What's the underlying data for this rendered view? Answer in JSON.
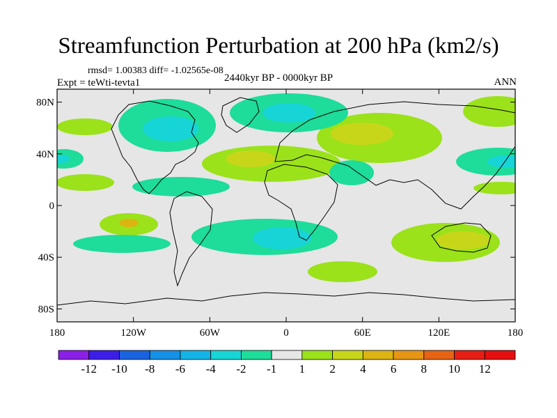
{
  "title": "Streamfunction Perturbation at 200 hPa (km2/s)",
  "stats_line": "rmsd= 1.00383 diff= -1.02565e-08",
  "experiment": "Expt = teWti-tevta1",
  "period": "2440kyr BP - 0000kyr BP",
  "season": "ANN",
  "lat_labels": [
    "80N",
    "40N",
    "0",
    "40S",
    "80S"
  ],
  "lat_values": [
    80,
    40,
    0,
    -40,
    -80
  ],
  "lon_labels": [
    "180",
    "120W",
    "60W",
    "0",
    "60E",
    "120E",
    "180"
  ],
  "lon_values": [
    -180,
    -120,
    -60,
    0,
    60,
    120,
    180
  ],
  "colorbar": {
    "labels": [
      "-12",
      "-10",
      "-8",
      "-6",
      "-4",
      "-2",
      "-1",
      "1",
      "2",
      "4",
      "6",
      "8",
      "10",
      "12"
    ],
    "colors": [
      "#8a1fe6",
      "#3c1fe6",
      "#1a63e0",
      "#1591e6",
      "#13b3e6",
      "#17d4d6",
      "#1edc9a",
      "#e6e6e6",
      "#9be21a",
      "#c8d61a",
      "#dcb414",
      "#e69614",
      "#e66414",
      "#e61e14",
      "#e60f0f"
    ]
  },
  "colors": {
    "background_land": "#e6e6e6",
    "neg_1": "#1edc9a",
    "neg_2": "#17d4d6",
    "pos_1": "#9be21a",
    "pos_2": "#c8d61a",
    "pos_3": "#dcb414"
  }
}
